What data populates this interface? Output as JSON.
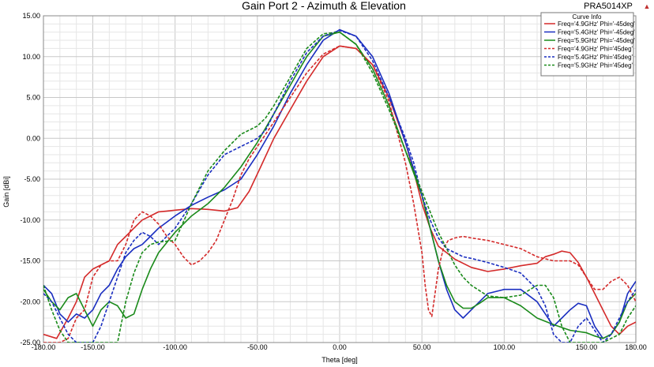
{
  "header": {
    "title": "Gain Port 2 - Azimuth & Elevation",
    "product": "PRA5014XP",
    "product_marker": "▲"
  },
  "chart_data": {
    "type": "line",
    "title": "Gain Port 2 - Azimuth & Elevation",
    "xlabel": "Theta [deg]",
    "ylabel": "Gain [dBi]",
    "xlim": [
      -180,
      180
    ],
    "ylim": [
      -25,
      15
    ],
    "xticks": [
      -180,
      -150,
      -100,
      -50,
      0,
      50,
      100,
      150,
      180
    ],
    "xtick_labels": [
      "-180.00",
      "-150.00",
      "-100.00",
      "-50.00",
      "0.00",
      "50.00",
      "100.00",
      "150.00",
      "180.00"
    ],
    "yticks": [
      15,
      10,
      5,
      0,
      -5,
      -10,
      -15,
      -20,
      -25
    ],
    "ytick_labels": [
      "15.00",
      "10.00",
      "5.00",
      "0.00",
      "-5.00",
      "-10.00",
      "-15.00",
      "-20.00",
      "-25.00"
    ],
    "grid": true,
    "legend": {
      "title": "Curve Info",
      "position": "top-right"
    },
    "series": [
      {
        "name": "Freq='4.9GHz' Phi='-45deg'",
        "color": "#d42a2a",
        "dash": "solid",
        "x": [
          -180,
          -172,
          -165,
          -160,
          -155,
          -150,
          -145,
          -140,
          -135,
          -130,
          -125,
          -120,
          -115,
          -110,
          -105,
          -100,
          -90,
          -80,
          -70,
          -62,
          -55,
          -48,
          -40,
          -30,
          -20,
          -10,
          0,
          10,
          20,
          30,
          40,
          45,
          50,
          55,
          60,
          70,
          80,
          90,
          100,
          110,
          120,
          125,
          130,
          135,
          140,
          145,
          150,
          155,
          160,
          165,
          170,
          175,
          180
        ],
        "y": [
          -24,
          -24.5,
          -22,
          -20,
          -17,
          -16,
          -15.5,
          -15,
          -13,
          -12,
          -11,
          -10,
          -9.5,
          -9,
          -8.9,
          -8.8,
          -8.6,
          -8.7,
          -8.9,
          -8.5,
          -6.5,
          -3.5,
          0,
          3.5,
          7,
          10,
          11.3,
          11,
          9,
          5,
          -0.5,
          -4,
          -8,
          -11,
          -13.2,
          -14.8,
          -15.8,
          -16.3,
          -16,
          -15.6,
          -15.3,
          -14.5,
          -14.2,
          -13.8,
          -14,
          -15.2,
          -17,
          -19,
          -21,
          -23,
          -24,
          -23,
          -22.5
        ]
      },
      {
        "name": "Freq='5.4GHz' Phi='-45deg'",
        "color": "#1a2ec0",
        "dash": "solid",
        "x": [
          -180,
          -175,
          -170,
          -165,
          -160,
          -155,
          -150,
          -145,
          -140,
          -135,
          -130,
          -125,
          -120,
          -115,
          -110,
          -100,
          -90,
          -80,
          -70,
          -60,
          -50,
          -40,
          -30,
          -20,
          -10,
          0,
          10,
          20,
          30,
          40,
          50,
          55,
          60,
          65,
          70,
          75,
          80,
          90,
          100,
          110,
          120,
          125,
          130,
          135,
          140,
          145,
          150,
          155,
          160,
          165,
          170,
          175,
          180
        ],
        "y": [
          -18,
          -19,
          -21.5,
          -22.5,
          -21.5,
          -22,
          -21,
          -19,
          -18,
          -16,
          -14.5,
          -13.5,
          -13,
          -12,
          -11,
          -9.5,
          -8.2,
          -7.2,
          -6.3,
          -5,
          -2,
          1.5,
          5.5,
          9,
          12,
          13.3,
          12.5,
          10,
          5.5,
          -0.5,
          -7,
          -11,
          -15,
          -18.5,
          -21,
          -22,
          -21,
          -19,
          -18.5,
          -18.5,
          -20,
          -21.5,
          -23,
          -22,
          -21,
          -20.2,
          -20.5,
          -23,
          -24.5,
          -24,
          -22.5,
          -19,
          -17.5
        ]
      },
      {
        "name": "Freq='5.9GHz' Phi='-45deg'",
        "color": "#1a8a1a",
        "dash": "solid",
        "x": [
          -180,
          -175,
          -170,
          -165,
          -160,
          -155,
          -150,
          -145,
          -140,
          -135,
          -130,
          -125,
          -120,
          -115,
          -110,
          -100,
          -90,
          -80,
          -70,
          -60,
          -50,
          -40,
          -30,
          -20,
          -10,
          0,
          10,
          20,
          30,
          40,
          50,
          55,
          60,
          65,
          70,
          75,
          80,
          85,
          90,
          100,
          110,
          120,
          130,
          140,
          150,
          155,
          160,
          165,
          170,
          175,
          180
        ],
        "y": [
          -18.5,
          -20,
          -21,
          -19.5,
          -19,
          -21,
          -23,
          -21,
          -20,
          -20.5,
          -22,
          -21.5,
          -18.5,
          -16,
          -14,
          -11.5,
          -9.5,
          -8,
          -6,
          -3.5,
          -0.5,
          3,
          6.5,
          10,
          12.5,
          13,
          11.5,
          8.5,
          4,
          -1.5,
          -7,
          -11,
          -15,
          -18,
          -20,
          -20.8,
          -20.8,
          -20.2,
          -19.5,
          -19.5,
          -20.5,
          -22,
          -22.8,
          -23.5,
          -23.8,
          -24.2,
          -24.5,
          -24,
          -22.5,
          -20,
          -19
        ]
      },
      {
        "name": "Freq='4.9GHz' Phi='45deg'",
        "color": "#d42a2a",
        "dash": "dashed",
        "x": [
          -180,
          -175,
          -170,
          -165,
          -160,
          -155,
          -150,
          -145,
          -140,
          -135,
          -130,
          -125,
          -120,
          -115,
          -110,
          -105,
          -100,
          -95,
          -90,
          -85,
          -80,
          -75,
          -70,
          -65,
          -60,
          -55,
          -50,
          -45,
          -40,
          -30,
          -20,
          -10,
          0,
          10,
          20,
          30,
          40,
          45,
          50,
          52,
          54,
          56,
          58,
          60,
          63,
          66,
          70,
          75,
          80,
          90,
          100,
          110,
          120,
          130,
          140,
          145,
          150,
          155,
          160,
          165,
          170,
          175,
          180
        ],
        "y": [
          -25,
          -25,
          -25,
          -24.5,
          -22,
          -21,
          -17,
          -15.5,
          -15,
          -15,
          -13,
          -10,
          -9,
          -9.5,
          -10.5,
          -12,
          -13,
          -14.5,
          -15.5,
          -15,
          -14,
          -12.5,
          -10,
          -7.5,
          -4.5,
          -2.5,
          -1,
          0.5,
          2,
          5,
          8,
          10.3,
          11.3,
          11,
          9,
          4.5,
          -3,
          -8,
          -14,
          -18,
          -21,
          -21.8,
          -19,
          -16,
          -13.5,
          -12.5,
          -12.2,
          -12,
          -12.2,
          -12.5,
          -13,
          -13.5,
          -14.5,
          -15,
          -15,
          -15.5,
          -17,
          -18.5,
          -18.5,
          -17.5,
          -17,
          -18,
          -20
        ]
      },
      {
        "name": "Freq='5.4GHz' Phi='45deg'",
        "color": "#1a2ec0",
        "dash": "dashed",
        "x": [
          -180,
          -175,
          -170,
          -165,
          -160,
          -155,
          -150,
          -145,
          -140,
          -135,
          -130,
          -125,
          -120,
          -115,
          -110,
          -100,
          -90,
          -80,
          -70,
          -60,
          -50,
          -45,
          -40,
          -30,
          -20,
          -10,
          0,
          10,
          20,
          30,
          40,
          45,
          50,
          55,
          60,
          65,
          70,
          75,
          80,
          90,
          100,
          110,
          120,
          125,
          130,
          135,
          140,
          145,
          150,
          155,
          160,
          165,
          170,
          175,
          180
        ],
        "y": [
          -19,
          -20,
          -22,
          -24,
          -25,
          -25,
          -25,
          -23,
          -20,
          -17,
          -14,
          -12.5,
          -11.5,
          -12,
          -13,
          -11,
          -8,
          -4.5,
          -2,
          -1,
          0,
          1,
          3,
          7,
          10.5,
          12.5,
          13.2,
          12.5,
          9.5,
          5,
          0,
          -3,
          -7,
          -10,
          -12.2,
          -13.5,
          -14,
          -14.5,
          -14.7,
          -15.2,
          -15.8,
          -16.5,
          -18.5,
          -20.5,
          -24,
          -25,
          -25,
          -23,
          -22,
          -23.5,
          -25,
          -24,
          -22,
          -20,
          -18.5
        ]
      },
      {
        "name": "Freq='5.9GHz' Phi='45deg'",
        "color": "#1a8a1a",
        "dash": "dashed",
        "x": [
          -180,
          -175,
          -170,
          -165,
          -160,
          -155,
          -150,
          -145,
          -140,
          -135,
          -130,
          -125,
          -120,
          -115,
          -110,
          -100,
          -90,
          -80,
          -70,
          -60,
          -50,
          -45,
          -40,
          -30,
          -20,
          -10,
          0,
          10,
          20,
          30,
          40,
          45,
          50,
          55,
          60,
          65,
          70,
          75,
          80,
          90,
          100,
          110,
          120,
          125,
          130,
          135,
          140,
          145,
          150,
          160,
          170,
          175,
          180
        ],
        "y": [
          -18,
          -21,
          -23.5,
          -25,
          -25,
          -25,
          -25,
          -25,
          -25,
          -25,
          -20,
          -16.5,
          -14,
          -13,
          -12.7,
          -12.5,
          -8,
          -4,
          -1.5,
          0.5,
          1.5,
          2.5,
          4,
          7.5,
          11,
          12.8,
          13,
          11.5,
          8,
          3.5,
          -1.5,
          -4,
          -6.5,
          -9,
          -11.5,
          -13.5,
          -15.5,
          -17,
          -18,
          -19.3,
          -19.5,
          -19.2,
          -18,
          -18,
          -19.5,
          -23,
          -25,
          -25,
          -25,
          -25,
          -24,
          -22,
          -20.5
        ]
      }
    ]
  }
}
